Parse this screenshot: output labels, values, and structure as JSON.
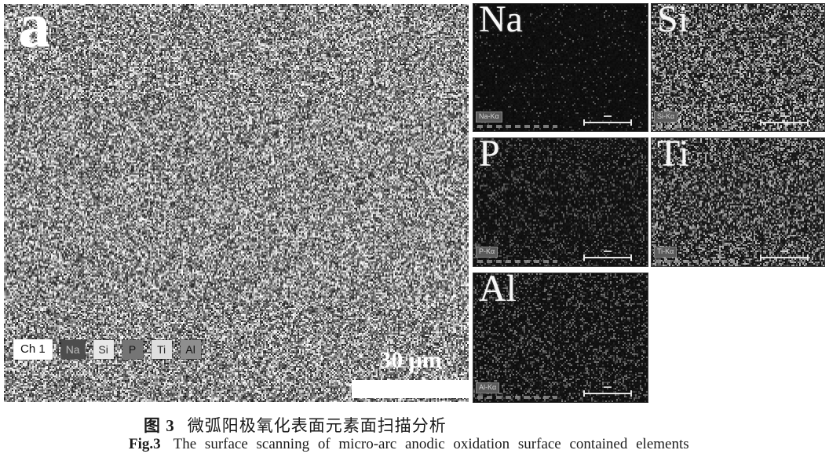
{
  "figure": {
    "panel_label": "a",
    "main_image": {
      "channel_label": "Ch 1",
      "element_tags": [
        {
          "label": "Na",
          "bg": "#4d4d4d",
          "fg": "#bdbdbd"
        },
        {
          "label": "Si",
          "bg": "#e8e8e8",
          "fg": "#2b2b2b"
        },
        {
          "label": "P",
          "bg": "#757575",
          "fg": "#161616"
        },
        {
          "label": "Ti",
          "bg": "#dedede",
          "fg": "#2b2b2b"
        },
        {
          "label": "Al",
          "bg": "#8f8f8f",
          "fg": "#101010"
        }
      ],
      "scale_bar_label": "30 μm",
      "noise": {
        "mode": "sem",
        "base": 70,
        "range": 185,
        "dark_speckle": 0.22
      }
    },
    "eds_maps": [
      {
        "element": "Na",
        "line_label": "Na-Kα",
        "noise": {
          "mode": "map",
          "bg": 10,
          "density": 0.08,
          "brightness": 80
        }
      },
      {
        "element": "Si",
        "line_label": "Si-Kα",
        "noise": {
          "mode": "map",
          "bg": 20,
          "density": 0.7,
          "brightness": 200
        }
      },
      {
        "element": "P",
        "line_label": "P-Kα",
        "noise": {
          "mode": "map",
          "bg": 12,
          "density": 0.33,
          "brightness": 95
        }
      },
      {
        "element": "Ti",
        "line_label": "Ti-Kα",
        "noise": {
          "mode": "map",
          "bg": 18,
          "density": 0.62,
          "brightness": 175
        }
      },
      {
        "element": "Al",
        "line_label": "Al-Kα",
        "noise": {
          "mode": "map",
          "bg": 12,
          "density": 0.36,
          "brightness": 110
        }
      }
    ],
    "caption": {
      "zh_label": "图 3",
      "zh_text": "微弧阳极氧化表面元素面扫描分析",
      "en_label": "Fig.3",
      "en_text": "The surface scanning of micro-arc anodic oxidation surface contained elements"
    }
  }
}
